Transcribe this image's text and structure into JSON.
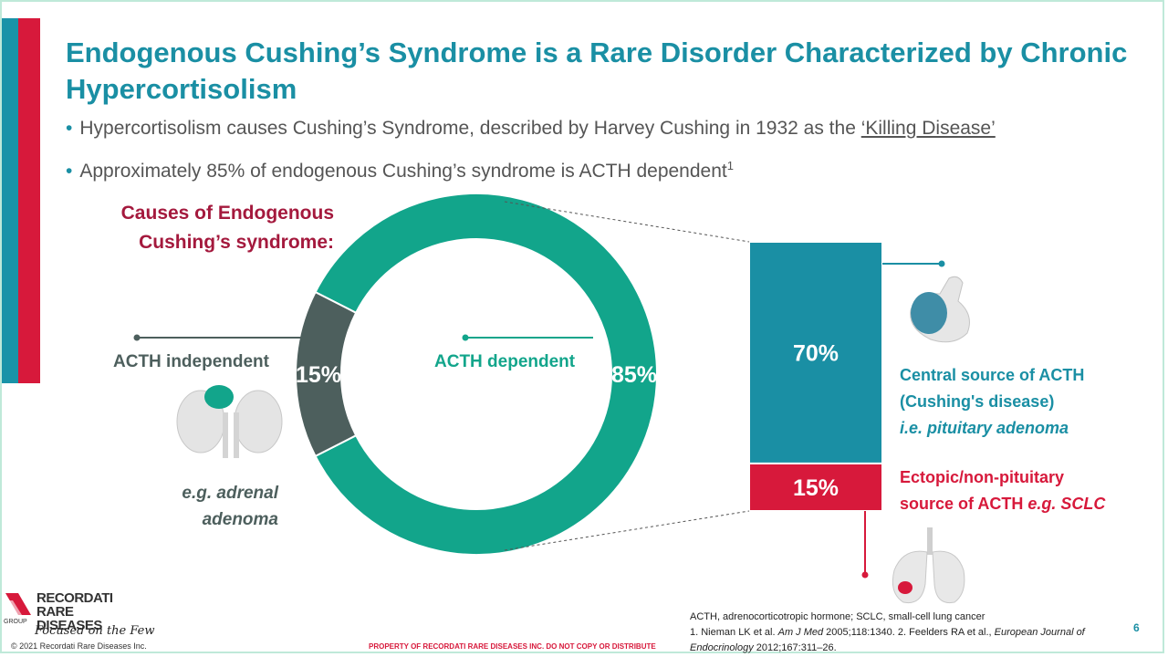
{
  "slide": {
    "title": "Endogenous Cushing’s Syndrome is a Rare Disorder Characterized by Chronic Hypercortisolism",
    "bullets": [
      {
        "text": "Hypercortisolism causes Cushing’s Syndrome, described by Harvey Cushing in 1932 as the ",
        "link": "‘Killing Disease’"
      },
      {
        "text": "Approximately 85% of endogenous Cushing’s syndrome is ACTH dependent",
        "sup": "1"
      }
    ],
    "page_number": "6"
  },
  "chart_data": [
    {
      "type": "pie",
      "title_line1": "Causes of Endogenous",
      "title_line2": "Cushing’s syndrome:",
      "slices": [
        {
          "label": "ACTH dependent",
          "value": 85,
          "value_label": "85%",
          "color": "#12a58b"
        },
        {
          "label": "ACTH independent",
          "value": 15,
          "value_label": "15%",
          "color": "#4d5f5d"
        }
      ],
      "annotation_independent_line1": "e.g. adrenal",
      "annotation_independent_line2": "adenoma"
    },
    {
      "type": "bar",
      "stacked": true,
      "segments": [
        {
          "label": "Central source of ACTH (Cushing's disease)",
          "value": 70,
          "value_label": "70%",
          "color": "#1a8fa4"
        },
        {
          "label": "Ectopic/non-pituitary source of ACTH",
          "value": 15,
          "value_label": "15%",
          "color": "#d7193b"
        }
      ]
    }
  ],
  "right_labels": {
    "central_line1": "Central source of ACTH",
    "central_line2": "(Cushing's disease)",
    "central_line3": "i.e. pituitary adenoma",
    "ectopic_line1": "Ectopic/non-pituitary",
    "ectopic_line2_prefix": "source of ACTH ",
    "ectopic_line2_em": "e.g. SCLC"
  },
  "footer": {
    "logo_line1": "RECORDATI",
    "logo_line2": "RARE DISEASES",
    "logo_group": "GROUP",
    "tagline": "Focused on the Few",
    "copyright": "© 2021 Recordati Rare Diseases Inc.",
    "property": "PROPERTY OF RECORDATI RARE DISEASES INC.  DO NOT COPY OR DISTRIBUTE",
    "ref_abbrev": "ACTH, adrenocorticotropic hormone; SCLC, small-cell lung cancer",
    "ref1_prefix": "1. Nieman LK et al. ",
    "ref1_journal": "Am J Med",
    "ref1_suffix": " 2005;118:1340. 2. Feelders RA et al., ",
    "ref2_journal": "European Journal of Endocrinology",
    "ref2_suffix": " 2012;167:311–26."
  },
  "colors": {
    "teal": "#1a8fa4",
    "green": "#12a58b",
    "red": "#d7193b",
    "slate": "#4d5f5d",
    "maroon": "#a4193d"
  }
}
